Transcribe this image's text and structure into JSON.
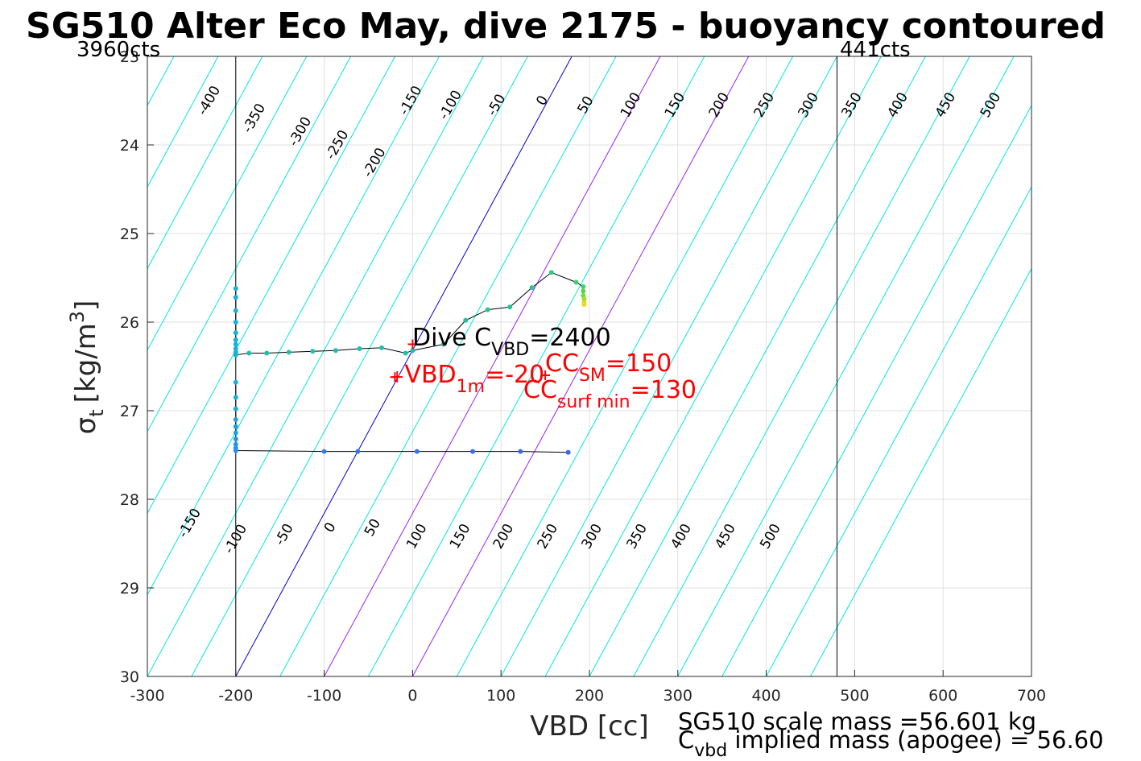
{
  "chart_data": {
    "type": "scatter",
    "title": "SG510 Alter Eco May, dive 2175 - buoyancy contoured",
    "xlabel": "VBD [cc]",
    "ylabel_main": "σ",
    "ylabel_sub": "t",
    "ylabel_units": "[kg/m",
    "ylabel_sup": "3",
    "ylabel_close": "]",
    "xlim": [
      -300,
      700
    ],
    "ylim": [
      23,
      30
    ],
    "y_reversed": true,
    "grid": true,
    "x_ticks": [
      -300,
      -200,
      -100,
      0,
      100,
      200,
      300,
      400,
      500,
      600,
      700
    ],
    "y_ticks": [
      23,
      24,
      25,
      26,
      27,
      28,
      29,
      30
    ],
    "x_tick_labels": [
      "-300",
      "-200",
      "-100",
      "0",
      "100",
      "200",
      "300",
      "400",
      "500",
      "600",
      "700"
    ],
    "y_tick_labels": [
      "23",
      "24",
      "25",
      "26",
      "27",
      "28",
      "29",
      "30"
    ],
    "contours": {
      "color": "#00e5e5",
      "zero_color": "#0000cc",
      "highlight_color": "#a020f0",
      "levels": [
        -450,
        -400,
        -350,
        -300,
        -250,
        -200,
        -150,
        -100,
        -50,
        0,
        50,
        100,
        150,
        200,
        250,
        300,
        350,
        400,
        450,
        500,
        550,
        600,
        650
      ],
      "vbd_at_density_30": [
        -650,
        -600,
        -550,
        -500,
        -450,
        -400,
        -350,
        -300,
        -250,
        -200,
        -150,
        -100,
        -50,
        0,
        50,
        100,
        150,
        200,
        250,
        300,
        350,
        400,
        450
      ],
      "slope_cc_per_density_unit": 54.3,
      "highlight_levels": [
        100,
        200
      ],
      "zero_level": 0,
      "top_labels": [
        {
          "text": "-400",
          "vbd": -230,
          "density": 23.5
        },
        {
          "text": "-350",
          "vbd": -179,
          "density": 23.7
        },
        {
          "text": "-300",
          "vbd": -127,
          "density": 23.85
        },
        {
          "text": "-250",
          "vbd": -85,
          "density": 24.0
        },
        {
          "text": "-200",
          "vbd": -43,
          "density": 24.2
        },
        {
          "text": "-150",
          "vbd": -2,
          "density": 23.5
        },
        {
          "text": "-100",
          "vbd": 43,
          "density": 23.55
        },
        {
          "text": "-50",
          "vbd": 95,
          "density": 23.55
        },
        {
          "text": "0",
          "vbd": 147,
          "density": 23.5
        },
        {
          "text": "50",
          "vbd": 196,
          "density": 23.55
        },
        {
          "text": "100",
          "vbd": 247,
          "density": 23.55
        },
        {
          "text": "150",
          "vbd": 297,
          "density": 23.55
        },
        {
          "text": "200",
          "vbd": 347,
          "density": 23.55
        },
        {
          "text": "250",
          "vbd": 398,
          "density": 23.55
        },
        {
          "text": "300",
          "vbd": 448,
          "density": 23.55
        },
        {
          "text": "350",
          "vbd": 497,
          "density": 23.55
        },
        {
          "text": "400",
          "vbd": 549,
          "density": 23.55
        },
        {
          "text": "450",
          "vbd": 603,
          "density": 23.55
        },
        {
          "text": "500",
          "vbd": 654,
          "density": 23.55
        }
      ],
      "bottom_labels": [
        {
          "text": "-150",
          "vbd": -252,
          "density": 28.27
        },
        {
          "text": "-100",
          "vbd": -200,
          "density": 28.45
        },
        {
          "text": "-50",
          "vbd": -145,
          "density": 28.4
        },
        {
          "text": "0",
          "vbd": -93,
          "density": 28.32
        },
        {
          "text": "50",
          "vbd": -45,
          "density": 28.32
        },
        {
          "text": "100",
          "vbd": 5,
          "density": 28.42
        },
        {
          "text": "150",
          "vbd": 54,
          "density": 28.42
        },
        {
          "text": "200",
          "vbd": 103,
          "density": 28.42
        },
        {
          "text": "250",
          "vbd": 153,
          "density": 28.42
        },
        {
          "text": "300",
          "vbd": 203,
          "density": 28.42
        },
        {
          "text": "350",
          "vbd": 254,
          "density": 28.42
        },
        {
          "text": "400",
          "vbd": 304,
          "density": 28.42
        },
        {
          "text": "450",
          "vbd": 354,
          "density": 28.42
        },
        {
          "text": "500",
          "vbd": 405,
          "density": 28.42
        }
      ]
    },
    "limit_lines": {
      "left": {
        "vbd": -200,
        "label": "3960cts"
      },
      "right": {
        "vbd": 480,
        "label": "441cts"
      },
      "color": "#000000"
    },
    "series": [
      {
        "name": "dive",
        "line_color": "#000000",
        "points": [
          {
            "x": -200,
            "y": 25.62,
            "c": "#1ab0d8"
          },
          {
            "x": -200,
            "y": 25.72,
            "c": "#1ab0d8"
          },
          {
            "x": -200,
            "y": 25.87,
            "c": "#1ab0d8"
          },
          {
            "x": -200,
            "y": 26.0,
            "c": "#1ab0d8"
          },
          {
            "x": -200,
            "y": 26.12,
            "c": "#1ab0d8"
          },
          {
            "x": -200,
            "y": 26.2,
            "c": "#1ab0d8"
          },
          {
            "x": -200,
            "y": 26.25,
            "c": "#1ab0d8"
          },
          {
            "x": -200,
            "y": 26.3,
            "c": "#1ab0d8"
          },
          {
            "x": -200,
            "y": 26.34,
            "c": "#1ab0d8"
          },
          {
            "x": -200,
            "y": 26.37,
            "c": "#1ab0d8"
          },
          {
            "x": -185,
            "y": 26.35,
            "c": "#1fbfb0"
          },
          {
            "x": -165,
            "y": 26.35,
            "c": "#1fbfb0"
          },
          {
            "x": -140,
            "y": 26.34,
            "c": "#1fbfb0"
          },
          {
            "x": -113,
            "y": 26.33,
            "c": "#1fbfb0"
          },
          {
            "x": -87,
            "y": 26.32,
            "c": "#1fbfb0"
          },
          {
            "x": -60,
            "y": 26.3,
            "c": "#1fbfb0"
          },
          {
            "x": -35,
            "y": 26.29,
            "c": "#1fbfb0"
          },
          {
            "x": -8,
            "y": 26.35,
            "c": "#1fbfb0"
          },
          {
            "x": 0,
            "y": 26.32,
            "c": "#1fbfb0"
          },
          {
            "x": 35,
            "y": 26.25,
            "c": "#22c0a0"
          },
          {
            "x": 60,
            "y": 25.98,
            "c": "#22c0a0"
          },
          {
            "x": 85,
            "y": 25.86,
            "c": "#24c49a"
          },
          {
            "x": 110,
            "y": 25.83,
            "c": "#24c49a"
          },
          {
            "x": 135,
            "y": 25.61,
            "c": "#28c890"
          },
          {
            "x": 157,
            "y": 25.44,
            "c": "#2cca88"
          },
          {
            "x": 185,
            "y": 25.55,
            "c": "#3ccf70"
          },
          {
            "x": 193,
            "y": 25.6,
            "c": "#48d060"
          },
          {
            "x": 193,
            "y": 25.65,
            "c": "#58d350"
          },
          {
            "x": 193,
            "y": 25.7,
            "c": "#70d840"
          },
          {
            "x": 194,
            "y": 25.74,
            "c": "#9cdc30"
          },
          {
            "x": 194,
            "y": 25.78,
            "c": "#d8dc20"
          },
          {
            "x": 194,
            "y": 25.8,
            "c": "#f0d818"
          }
        ]
      },
      {
        "name": "climb",
        "line_color": "#000000",
        "points": [
          {
            "x": -200,
            "y": 26.68,
            "c": "#1ab0d8"
          },
          {
            "x": -200,
            "y": 26.85,
            "c": "#1ab0d8"
          },
          {
            "x": -200,
            "y": 26.98,
            "c": "#1ab0d8"
          },
          {
            "x": -200,
            "y": 27.1,
            "c": "#21a0e0"
          },
          {
            "x": -200,
            "y": 27.18,
            "c": "#21a0e0"
          },
          {
            "x": -200,
            "y": 27.25,
            "c": "#21a0e0"
          },
          {
            "x": -200,
            "y": 27.32,
            "c": "#2496e8"
          },
          {
            "x": -200,
            "y": 27.38,
            "c": "#2496e8"
          },
          {
            "x": -200,
            "y": 27.42,
            "c": "#2496e8"
          },
          {
            "x": -200,
            "y": 27.45,
            "c": "#2a8ff0"
          },
          {
            "x": -100,
            "y": 27.46,
            "c": "#2e7ff0"
          },
          {
            "x": -62,
            "y": 27.46,
            "c": "#3478f0"
          },
          {
            "x": 5,
            "y": 27.46,
            "c": "#3872f0"
          },
          {
            "x": 68,
            "y": 27.46,
            "c": "#3c6cf0"
          },
          {
            "x": 122,
            "y": 27.46,
            "c": "#3e68f0"
          },
          {
            "x": 176,
            "y": 27.47,
            "c": "#4062f0"
          }
        ]
      }
    ],
    "annotations": {
      "dive_cvbd": {
        "prefix": "Dive C",
        "sub": "VBD",
        "suffix": "=2400",
        "color": "#000000"
      },
      "vbd_1m": {
        "marker": "+",
        "prefix": "VBD",
        "sub": "1m",
        "suffix": "=-20",
        "color": "#ff0000"
      },
      "cc_sm": {
        "prefix": "CC",
        "sub": "SM",
        "suffix": "=150",
        "color": "#ff0000"
      },
      "cc_surf": {
        "prefix": "CC",
        "sub": "surf min",
        "suffix": "=130",
        "color": "#ff0000"
      },
      "red_markers": [
        {
          "x": 0,
          "y": 26.25
        },
        {
          "x": -20,
          "y": 26.62
        },
        {
          "x": 150,
          "y": 26.6
        }
      ]
    },
    "footer": {
      "line1": "SG510 scale mass =56.601 kg",
      "line2_prefix": "C",
      "line2_sub": "vbd",
      "line2_suffix": " implied mass (apogee) = 56.60"
    }
  }
}
